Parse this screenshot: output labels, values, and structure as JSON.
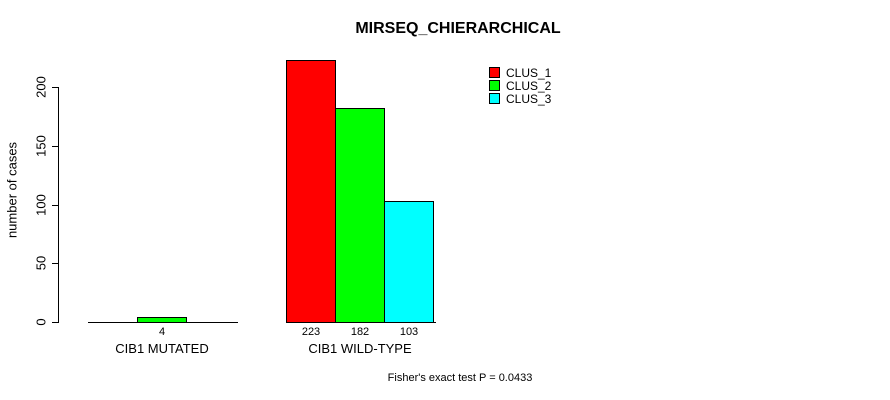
{
  "chart_data": {
    "type": "bar",
    "title": "MIRSEQ_CHIERARCHICAL",
    "ylabel": "number of cases",
    "xlabel": "",
    "categories": [
      "CIB1 MUTATED",
      "CIB1 WILD-TYPE"
    ],
    "series": [
      {
        "name": "CLUS_1",
        "color": "#ff0000",
        "values": [
          0,
          223
        ]
      },
      {
        "name": "CLUS_2",
        "color": "#00ff00",
        "values": [
          4,
          182
        ]
      },
      {
        "name": "CLUS_3",
        "color": "#00ffff",
        "values": [
          0,
          103
        ]
      }
    ],
    "bar_value_labels": [
      [
        "",
        "4",
        ""
      ],
      [
        "223",
        "182",
        "103"
      ]
    ],
    "yticks": [
      "0",
      "50",
      "100",
      "150",
      "200"
    ],
    "ylim": [
      0,
      223
    ],
    "grid": false,
    "legend": {
      "position": "top-right",
      "entries": [
        {
          "label": "CLUS_1",
          "color": "#ff0000"
        },
        {
          "label": "CLUS_2",
          "color": "#00ff00"
        },
        {
          "label": "CLUS_3",
          "color": "#00ffff"
        }
      ]
    },
    "annotation": "Fisher's exact test P = 0.0433"
  }
}
